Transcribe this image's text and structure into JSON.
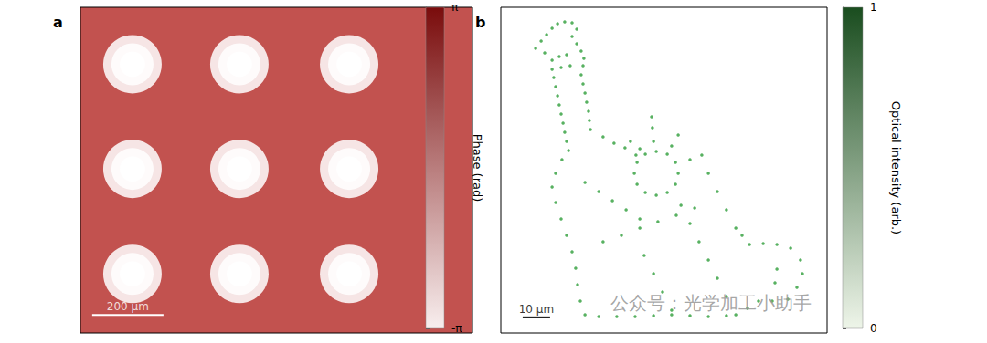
{
  "chart_data": [
    {
      "title": "a",
      "type": "image",
      "color": "#c2524f",
      "xlim": [
        0,
        1100
      ],
      "ylim": [
        0,
        915
      ],
      "tick_labels": false,
      "spot_centers": [
        [
          146,
          755
        ],
        [
          446,
          755
        ],
        [
          754,
          755
        ],
        [
          146,
          461
        ],
        [
          446,
          461
        ],
        [
          754,
          461
        ],
        [
          146,
          166
        ],
        [
          446,
          166
        ],
        [
          754,
          166
        ]
      ],
      "scale_bar": {
        "length": 200,
        "label": "200 μm"
      },
      "colorbar": {
        "title": "Phase (rad)",
        "range": [
          -3.14159,
          3.14159
        ],
        "ticks": [
          {
            "value": -3.14159,
            "label": "-π"
          },
          {
            "value": 3.14159,
            "label": "π"
          }
        ],
        "colors": [
          "#f8eeee",
          "#7a0c0c"
        ]
      }
    },
    {
      "title": "b",
      "type": "scatter",
      "color": "#2e9e3a",
      "marker": "circle",
      "xlim": [
        0,
        119
      ],
      "ylim": [
        0,
        119
      ],
      "tick_labels": false,
      "points": [
        [
          12.7,
          104
        ],
        [
          14.7,
          106.7
        ],
        [
          16.7,
          109
        ],
        [
          18.7,
          111.3
        ],
        [
          20.7,
          113
        ],
        [
          23.3,
          113.7
        ],
        [
          26,
          113.3
        ],
        [
          27.7,
          111
        ],
        [
          26,
          108.3
        ],
        [
          27.7,
          105.7
        ],
        [
          29.3,
          103
        ],
        [
          30.3,
          100.3
        ],
        [
          30,
          97.7
        ],
        [
          16,
          102.3
        ],
        [
          18.7,
          99.7
        ],
        [
          21.3,
          101
        ],
        [
          24,
          101.7
        ],
        [
          18.7,
          96.3
        ],
        [
          22,
          97
        ],
        [
          25.3,
          97.7
        ],
        [
          19.3,
          93.3
        ],
        [
          20,
          90
        ],
        [
          20.7,
          86.7
        ],
        [
          21.3,
          83.3
        ],
        [
          22,
          80
        ],
        [
          22.7,
          76.7
        ],
        [
          23.3,
          73.3
        ],
        [
          24,
          70
        ],
        [
          24.7,
          66.7
        ],
        [
          29.3,
          94.3
        ],
        [
          30,
          91
        ],
        [
          30.7,
          87.7
        ],
        [
          31.3,
          84.3
        ],
        [
          32,
          81
        ],
        [
          32.3,
          77.7
        ],
        [
          32.7,
          74.3
        ],
        [
          37.3,
          71.7
        ],
        [
          41.3,
          69.3
        ],
        [
          45.3,
          67.7
        ],
        [
          49.3,
          65
        ],
        [
          64.7,
          58.3
        ],
        [
          63.7,
          62.3
        ],
        [
          60.7,
          65.3
        ],
        [
          56.7,
          66.3
        ],
        [
          52.7,
          65.3
        ],
        [
          49.7,
          62.3
        ],
        [
          48.7,
          58.3
        ],
        [
          49.7,
          54.3
        ],
        [
          52.7,
          51.3
        ],
        [
          56.7,
          50.3
        ],
        [
          60.7,
          51.3
        ],
        [
          63.7,
          54.3
        ],
        [
          55.7,
          70
        ],
        [
          55.3,
          75
        ],
        [
          55,
          79
        ],
        [
          62.3,
          68.3
        ],
        [
          64.7,
          72.3
        ],
        [
          50.7,
          67.3
        ],
        [
          47.3,
          70
        ],
        [
          69,
          63.3
        ],
        [
          73.3,
          65
        ],
        [
          18.7,
          53.3
        ],
        [
          20,
          47.7
        ],
        [
          22,
          41.7
        ],
        [
          24,
          35.7
        ],
        [
          26,
          29.7
        ],
        [
          27.3,
          23.7
        ],
        [
          28,
          17.7
        ],
        [
          29,
          11.7
        ],
        [
          30.7,
          6.7
        ],
        [
          22.3,
          63.3
        ],
        [
          20,
          58.3
        ],
        [
          30.7,
          55
        ],
        [
          35.7,
          51.7
        ],
        [
          40.7,
          48.3
        ],
        [
          45.7,
          45
        ],
        [
          50.7,
          41.7
        ],
        [
          37.3,
          33.3
        ],
        [
          44,
          35.7
        ],
        [
          50.7,
          38.3
        ],
        [
          57.3,
          40.7
        ],
        [
          64,
          43
        ],
        [
          70.7,
          45.7
        ],
        [
          65.7,
          46.7
        ],
        [
          69,
          40
        ],
        [
          72.3,
          33.3
        ],
        [
          75.7,
          26.7
        ],
        [
          79,
          20
        ],
        [
          82.3,
          13.3
        ],
        [
          85.7,
          6.7
        ],
        [
          52.3,
          28.3
        ],
        [
          55.7,
          21.7
        ],
        [
          59,
          15
        ],
        [
          62.3,
          8.3
        ],
        [
          35.7,
          6
        ],
        [
          42.3,
          6
        ],
        [
          49,
          6
        ],
        [
          55.7,
          6.3
        ],
        [
          62.3,
          6.7
        ],
        [
          69,
          6.3
        ],
        [
          75.7,
          6
        ],
        [
          82.3,
          6.3
        ],
        [
          75.7,
          58.3
        ],
        [
          79,
          51.7
        ],
        [
          82.3,
          45
        ],
        [
          85.7,
          38.3
        ],
        [
          90.7,
          32.3
        ],
        [
          95.7,
          32.7
        ],
        [
          100.7,
          32.3
        ],
        [
          105.7,
          31
        ],
        [
          109.3,
          26.7
        ],
        [
          110,
          21.7
        ],
        [
          108,
          16.7
        ],
        [
          104.7,
          12.3
        ],
        [
          99,
          11.7
        ],
        [
          94,
          11.7
        ],
        [
          100.7,
          23.3
        ],
        [
          100,
          18.3
        ],
        [
          88,
          35.7
        ],
        [
          90,
          9
        ]
      ],
      "scale_bar": {
        "length": 10,
        "label": "10 μm"
      },
      "annotations": [
        "公众号：光学加工小助手"
      ],
      "colorbar": {
        "title": "Optical intensity (arb.)",
        "range": [
          0,
          1
        ],
        "ticks": [
          0,
          1
        ],
        "colors": [
          "#eef5e9",
          "#1a4d1f"
        ]
      }
    }
  ]
}
